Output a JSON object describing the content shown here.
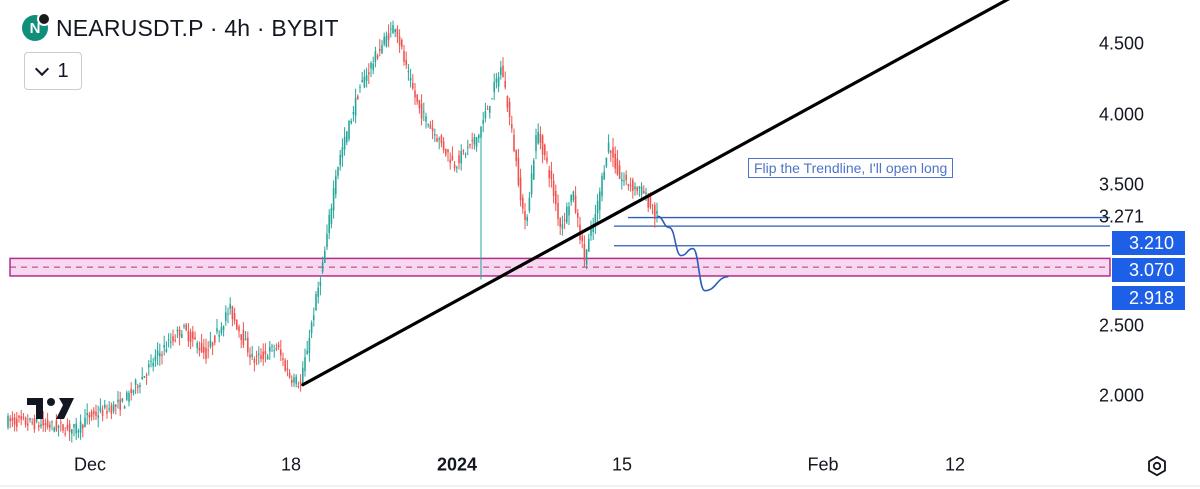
{
  "header": {
    "title": "NEARUSDT.P · 4h · BYBIT",
    "coin_letter": "N",
    "collapse_count": "1"
  },
  "colors": {
    "up": "#26a69a",
    "down": "#ef5350",
    "trendline": "#000000",
    "hline": "#2c5dba",
    "zone": "#ae2e92",
    "zone_fill": "#f7d8ef",
    "tag": "#1e5fe8"
  },
  "annotation": "Flip the Trendline, I'll open long",
  "y_axis": {
    "labels": [
      "4.500",
      "4.000",
      "3.500",
      "2.500",
      "2.000"
    ],
    "plain_level": "3.271",
    "tags": [
      "3.210",
      "3.070",
      "2.918"
    ]
  },
  "x_axis": {
    "labels": [
      "Dec",
      "18",
      "2024",
      "15",
      "Feb",
      "12"
    ],
    "bold": "2024"
  },
  "icons": {
    "settings": "gear-icon",
    "logo": "tradingview-logo",
    "coin": "near-coin-icon"
  },
  "chart_data": {
    "type": "candlestick",
    "symbol": "NEARUSDT.P",
    "timeframe": "4h",
    "exchange": "BYBIT",
    "ylim": [
      1.75,
      4.95
    ],
    "x_ticks": [
      "Dec",
      "18",
      "2024",
      "15",
      "Feb",
      "12"
    ],
    "y_ticks": [
      2.0,
      2.5,
      3.5,
      4.0,
      4.5
    ],
    "price_path": [
      {
        "date": "2023-11-25",
        "price": 1.82
      },
      {
        "date": "2023-11-30",
        "price": 1.76
      },
      {
        "date": "2023-12-01",
        "price": 1.85
      },
      {
        "date": "2023-12-04",
        "price": 1.95
      },
      {
        "date": "2023-12-07",
        "price": 2.3
      },
      {
        "date": "2023-12-09",
        "price": 2.48
      },
      {
        "date": "2023-12-11",
        "price": 2.3
      },
      {
        "date": "2023-12-13",
        "price": 2.62
      },
      {
        "date": "2023-12-15",
        "price": 2.25
      },
      {
        "date": "2023-12-17",
        "price": 2.35
      },
      {
        "date": "2023-12-18",
        "price": 2.15
      },
      {
        "date": "2023-12-19",
        "price": 2.08
      },
      {
        "date": "2023-12-20",
        "price": 2.55
      },
      {
        "date": "2023-12-21",
        "price": 3.0
      },
      {
        "date": "2023-12-22",
        "price": 3.6
      },
      {
        "date": "2023-12-23",
        "price": 3.9
      },
      {
        "date": "2023-12-24",
        "price": 4.2
      },
      {
        "date": "2023-12-26",
        "price": 4.52
      },
      {
        "date": "2023-12-27",
        "price": 4.65
      },
      {
        "date": "2023-12-28",
        "price": 4.3
      },
      {
        "date": "2023-12-29",
        "price": 4.05
      },
      {
        "date": "2024-01-01",
        "price": 3.65
      },
      {
        "date": "2024-01-03",
        "price": 3.85
      },
      {
        "date": "2024-01-05",
        "price": 4.35
      },
      {
        "date": "2024-01-06",
        "price": 3.8
      },
      {
        "date": "2024-01-07",
        "price": 3.2
      },
      {
        "date": "2024-01-08",
        "price": 3.9
      },
      {
        "date": "2024-01-09",
        "price": 3.6
      },
      {
        "date": "2024-01-10",
        "price": 3.2
      },
      {
        "date": "2024-01-11",
        "price": 3.45
      },
      {
        "date": "2024-01-12",
        "price": 2.98
      },
      {
        "date": "2024-01-13",
        "price": 3.3
      },
      {
        "date": "2024-01-14",
        "price": 3.8
      },
      {
        "date": "2024-01-15",
        "price": 3.55
      },
      {
        "date": "2024-01-17",
        "price": 3.45
      },
      {
        "date": "2024-01-18",
        "price": 3.28
      }
    ],
    "wick_low": {
      "date": "2024-01-03",
      "price": 2.83
    },
    "trendline": {
      "from": {
        "date": "2023-12-19",
        "price": 2.08
      },
      "to": {
        "date": "2024-02-20",
        "price": 4.98
      }
    },
    "horizontal_lines": [
      3.271,
      3.21,
      3.07
    ],
    "zone": {
      "top": 2.98,
      "bottom": 2.855,
      "mid": 2.918
    },
    "projection": [
      {
        "date": "2024-01-18",
        "price": 3.28
      },
      {
        "date": "2024-01-19",
        "price": 3.2
      },
      {
        "date": "2024-01-20",
        "price": 3.0
      },
      {
        "date": "2024-01-21",
        "price": 3.05
      },
      {
        "date": "2024-01-22",
        "price": 2.75
      },
      {
        "date": "2024-01-24",
        "price": 2.85
      }
    ]
  }
}
